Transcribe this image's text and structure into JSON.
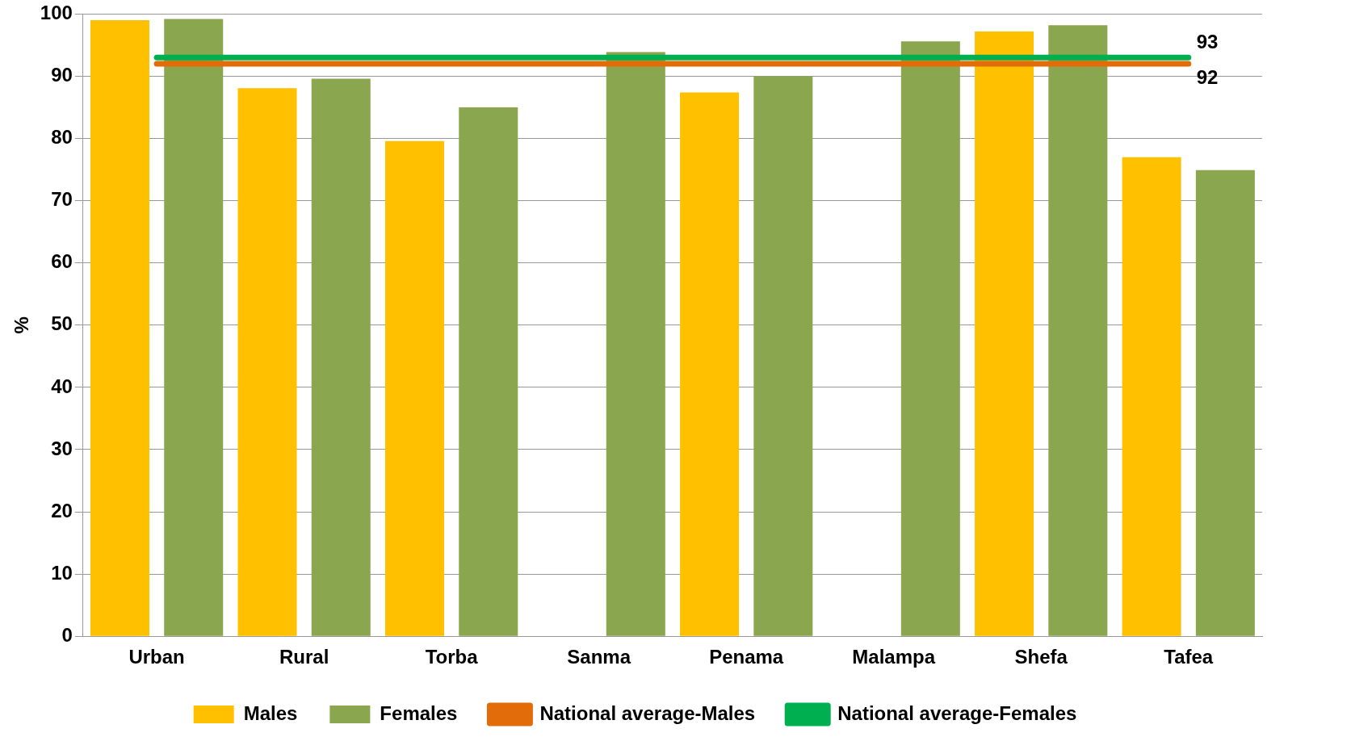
{
  "chart_data": {
    "type": "bar",
    "ylabel": "%",
    "categories": [
      "Urban",
      "Rural",
      "Torba",
      "Sanma",
      "Penama",
      "Malampa",
      "Shefa",
      "Tafea"
    ],
    "series": [
      {
        "name": "Males",
        "color": "#ffc000",
        "values": [
          99.0,
          88.1,
          79.6,
          null,
          87.4,
          null,
          97.2,
          77.0
        ]
      },
      {
        "name": "Females",
        "color": "#8aa64e",
        "values": [
          99.2,
          89.6,
          85.0,
          93.9,
          90.0,
          95.6,
          98.2,
          74.9
        ]
      },
      {
        "name": "National average-Males",
        "type": "line",
        "color": "#e36c0a",
        "values": [
          92,
          92,
          92,
          92,
          92,
          92,
          92,
          92
        ],
        "value_labels": [
          null,
          null,
          null,
          null,
          null,
          null,
          null,
          "92"
        ]
      },
      {
        "name": "National average-Females",
        "type": "line",
        "color": "#00b050",
        "values": [
          93,
          93,
          93,
          93,
          93,
          93,
          93,
          93
        ],
        "value_labels": [
          null,
          null,
          null,
          null,
          null,
          null,
          null,
          "93"
        ]
      }
    ],
    "ylim": [
      0,
      100
    ],
    "yticks": [
      0,
      10,
      20,
      30,
      40,
      50,
      60,
      70,
      80,
      90,
      100
    ],
    "grid": "y",
    "legend": "bottom",
    "marker": "none"
  }
}
